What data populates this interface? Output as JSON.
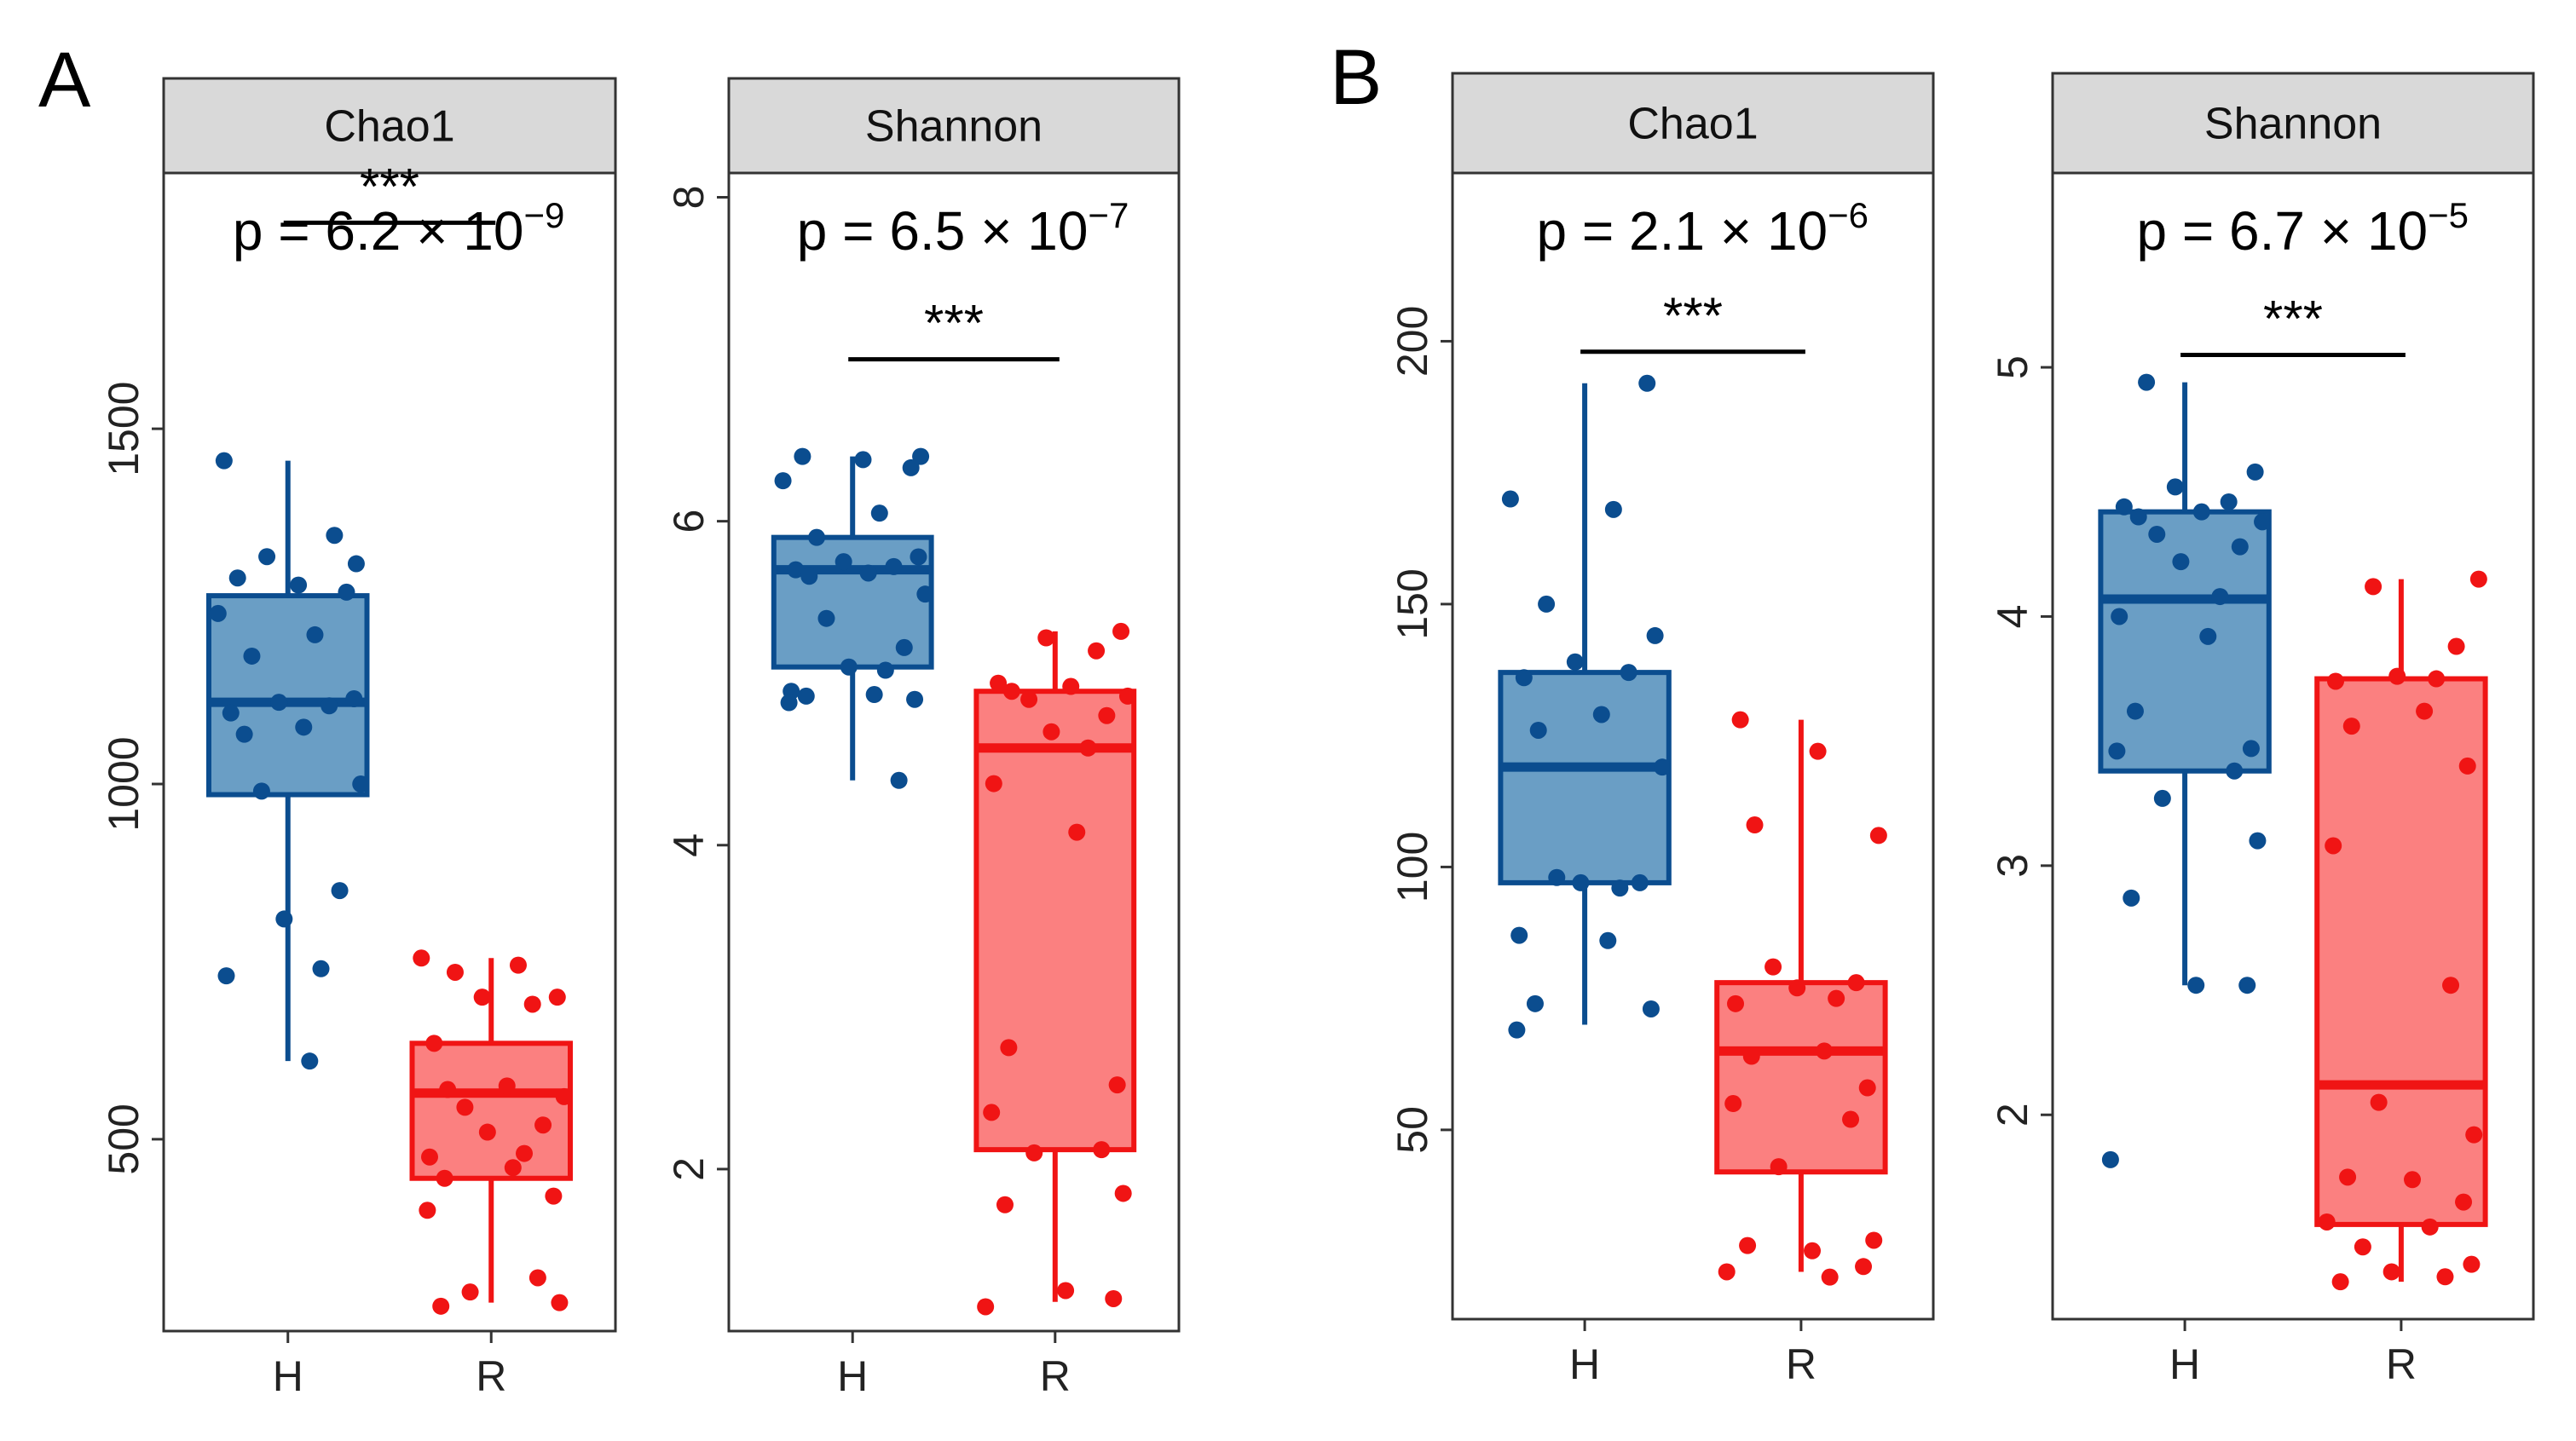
{
  "figure": {
    "panels": [
      {
        "letter": "A"
      },
      {
        "letter": "B"
      }
    ],
    "colors": {
      "H": {
        "stroke": "#0b4d8f",
        "fill": "#6a9ec5",
        "point": "#0b4d8f"
      },
      "R": {
        "stroke": "#f01414",
        "fill": "#fb8080",
        "point": "#f01414"
      },
      "strip_bg": "#d9d9d9",
      "frame": "#333333"
    }
  },
  "chart_data": [
    {
      "type": "boxplot",
      "panel": "A",
      "metric": "Chao1",
      "categories": [
        "H",
        "R"
      ],
      "ylim": [
        230,
        1860
      ],
      "yticks": [
        500,
        1000,
        1500
      ],
      "ytick_labels": [
        "500",
        "1000",
        "1500"
      ],
      "p_value": {
        "prefix": "p = 6.2 × 10",
        "exp": "−9"
      },
      "significance": "***",
      "bracket_y": 1790,
      "series": [
        {
          "name": "H",
          "box": {
            "whisker_low": 610,
            "q1": 985,
            "median": 1115,
            "q3": 1265,
            "whisker_high": 1455
          },
          "points": [
            1455,
            1350,
            1320,
            1310,
            1290,
            1280,
            1270,
            1240,
            1210,
            1180,
            1120,
            1115,
            1110,
            1100,
            1080,
            1070,
            1000,
            990,
            850,
            810,
            740,
            730,
            610
          ]
        },
        {
          "name": "R",
          "box": {
            "whisker_low": 270,
            "q1": 445,
            "median": 565,
            "q3": 635,
            "whisker_high": 755
          },
          "points": [
            755,
            745,
            735,
            700,
            700,
            690,
            635,
            575,
            570,
            560,
            545,
            520,
            510,
            480,
            475,
            460,
            445,
            420,
            400,
            305,
            285,
            270,
            265
          ]
        }
      ]
    },
    {
      "type": "boxplot",
      "panel": "A",
      "metric": "Shannon",
      "categories": [
        "H",
        "R"
      ],
      "ylim": [
        1.0,
        8.15
      ],
      "yticks": [
        2,
        4,
        6,
        8
      ],
      "ytick_labels": [
        "2",
        "4",
        "6",
        "8"
      ],
      "p_value": {
        "prefix": "p = 6.5 × 10",
        "exp": "−7"
      },
      "significance": "***",
      "bracket_y": 7.0,
      "series": [
        {
          "name": "H",
          "box": {
            "whisker_low": 4.4,
            "q1": 5.1,
            "median": 5.7,
            "q3": 5.9,
            "whisker_high": 6.4
          },
          "points": [
            6.4,
            6.4,
            6.38,
            6.33,
            6.25,
            6.05,
            5.9,
            5.78,
            5.75,
            5.72,
            5.7,
            5.68,
            5.66,
            5.55,
            5.4,
            5.22,
            5.1,
            5.08,
            4.95,
            4.93,
            4.92,
            4.9,
            4.88,
            4.4
          ]
        },
        {
          "name": "R",
          "box": {
            "whisker_low": 1.18,
            "q1": 2.12,
            "median": 4.6,
            "q3": 4.95,
            "whisker_high": 5.32
          },
          "points": [
            5.32,
            5.28,
            5.2,
            5.0,
            4.98,
            4.95,
            4.92,
            4.9,
            4.8,
            4.7,
            4.6,
            4.38,
            4.08,
            2.75,
            2.52,
            2.35,
            2.12,
            2.1,
            1.85,
            1.78,
            1.25,
            1.2,
            1.15
          ]
        }
      ]
    },
    {
      "type": "boxplot",
      "panel": "B",
      "metric": "Chao1",
      "categories": [
        "H",
        "R"
      ],
      "ylim": [
        14,
        232
      ],
      "yticks": [
        50,
        100,
        150,
        200
      ],
      "ytick_labels": [
        "50",
        "100",
        "150",
        "200"
      ],
      "p_value": {
        "prefix": "p = 2.1 × 10",
        "exp": "−6"
      },
      "significance": "***",
      "bracket_y": 198,
      "series": [
        {
          "name": "H",
          "box": {
            "whisker_low": 70,
            "q1": 97,
            "median": 119,
            "q3": 137,
            "whisker_high": 192
          },
          "points": [
            192,
            170,
            168,
            150,
            144,
            139,
            137,
            136,
            129,
            126,
            119,
            98,
            97,
            97,
            96,
            87,
            86,
            74,
            73,
            69
          ]
        },
        {
          "name": "R",
          "box": {
            "whisker_low": 23,
            "q1": 42,
            "median": 65,
            "q3": 78,
            "whisker_high": 128
          },
          "points": [
            128,
            122,
            108,
            106,
            81,
            78,
            77,
            75,
            74,
            65,
            64,
            58,
            55,
            52,
            43,
            29,
            28,
            27,
            24,
            23,
            22
          ]
        }
      ]
    },
    {
      "type": "boxplot",
      "panel": "B",
      "metric": "Shannon",
      "categories": [
        "H",
        "R"
      ],
      "ylim": [
        1.18,
        5.78
      ],
      "yticks": [
        2,
        3,
        4,
        5
      ],
      "ytick_labels": [
        "2",
        "3",
        "4",
        "5"
      ],
      "p_value": {
        "prefix": "p = 6.7 × 10",
        "exp": "−5"
      },
      "significance": "***",
      "bracket_y": 5.05,
      "series": [
        {
          "name": "H",
          "box": {
            "whisker_low": 2.52,
            "q1": 3.38,
            "median": 4.07,
            "q3": 4.42,
            "whisker_high": 4.94
          },
          "points": [
            4.94,
            4.58,
            4.52,
            4.46,
            4.44,
            4.42,
            4.4,
            4.38,
            4.33,
            4.28,
            4.22,
            4.08,
            4.0,
            3.92,
            3.62,
            3.47,
            3.46,
            3.38,
            3.27,
            3.1,
            2.87,
            2.52,
            2.52,
            1.82
          ]
        },
        {
          "name": "R",
          "box": {
            "whisker_low": 1.33,
            "q1": 1.56,
            "median": 2.12,
            "q3": 3.75,
            "whisker_high": 4.15
          },
          "points": [
            4.15,
            4.12,
            3.88,
            3.76,
            3.75,
            3.74,
            3.62,
            3.56,
            3.4,
            3.08,
            2.52,
            2.05,
            1.92,
            1.75,
            1.74,
            1.65,
            1.57,
            1.55,
            1.47,
            1.4,
            1.37,
            1.35,
            1.33
          ]
        }
      ]
    }
  ]
}
